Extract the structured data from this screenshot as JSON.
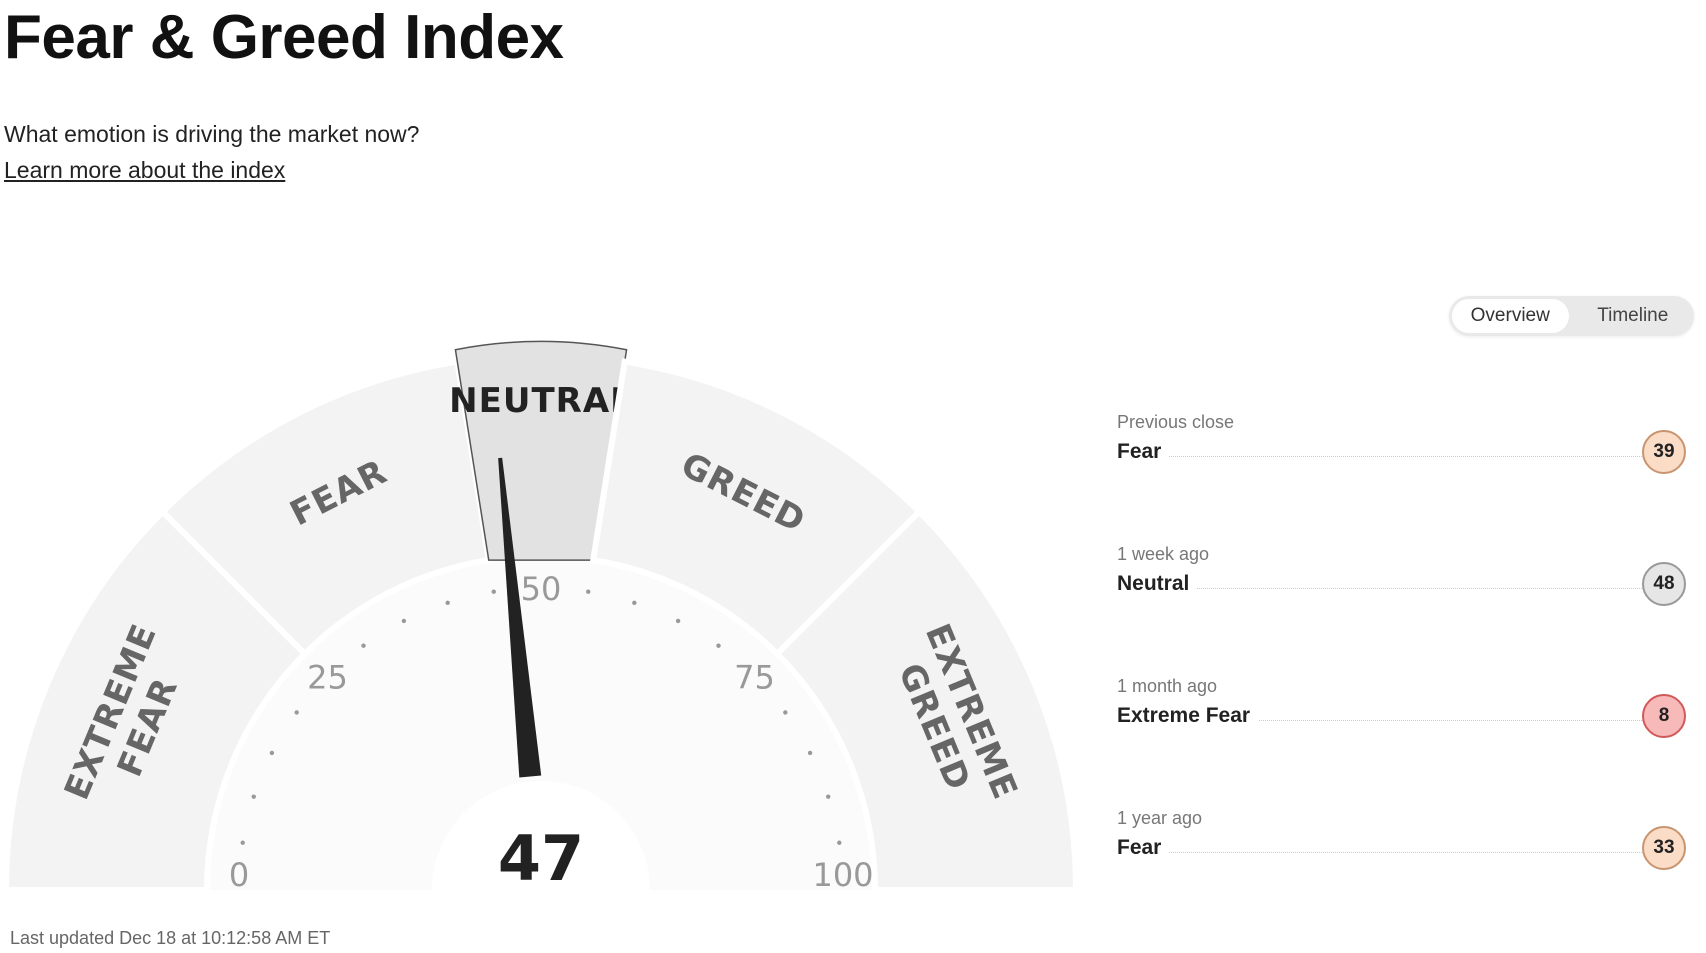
{
  "header": {
    "title": "Fear & Greed Index",
    "subtitle": "What emotion is driving the market now?",
    "learn_link": "Learn more about the index"
  },
  "view_toggle": {
    "options": [
      "Overview",
      "Timeline"
    ],
    "selected": "Overview"
  },
  "gauge": {
    "value": 47,
    "value_label": "47",
    "range": [
      0,
      100
    ],
    "tick_labels": [
      "0",
      "25",
      "50",
      "75",
      "100"
    ],
    "tick_values": [
      0,
      25,
      50,
      75,
      100
    ],
    "bands": [
      {
        "label_lines": [
          "EXTREME",
          "FEAR"
        ],
        "from": 0,
        "to": 25
      },
      {
        "label_lines": [
          "FEAR"
        ],
        "from": 25,
        "to": 45
      },
      {
        "label_lines": [
          "NEUTRAL"
        ],
        "from": 45,
        "to": 55,
        "active": true
      },
      {
        "label_lines": [
          "GREED"
        ],
        "from": 55,
        "to": 75
      },
      {
        "label_lines": [
          "EXTREME",
          "GREED"
        ],
        "from": 75,
        "to": 100
      }
    ],
    "colors": {
      "band": "#f3f3f3",
      "active_band": "#e2e2e2",
      "needle": "#222222"
    }
  },
  "history": [
    {
      "when": "Previous close",
      "rating": "Fear",
      "value": "39",
      "fill": "#fbdcc6",
      "border": "#c99570"
    },
    {
      "when": "1 week ago",
      "rating": "Neutral",
      "value": "48",
      "fill": "#e6e6e6",
      "border": "#999999"
    },
    {
      "when": "1 month ago",
      "rating": "Extreme Fear",
      "value": "8",
      "fill": "#f8b9b9",
      "border": "#d05a5a"
    },
    {
      "when": "1 year ago",
      "rating": "Fear",
      "value": "33",
      "fill": "#fbdcc6",
      "border": "#c99570"
    }
  ],
  "last_updated": "Last updated Dec 18 at 10:12:58 AM ET"
}
